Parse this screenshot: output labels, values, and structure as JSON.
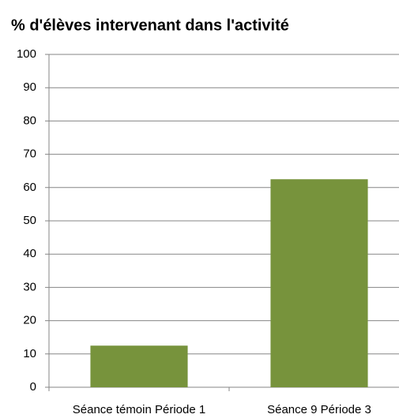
{
  "chart_data": {
    "type": "bar",
    "title": "% d'élèves intervenant dans l'activité",
    "categories": [
      "Séance témoin Période 1",
      "Séance 9 Période 3"
    ],
    "values": [
      12.5,
      62.5
    ],
    "color": "#77933c",
    "ylim": [
      0,
      100
    ],
    "yticks": [
      0,
      10,
      20,
      30,
      40,
      50,
      60,
      70,
      80,
      90,
      100
    ],
    "grid": true
  }
}
